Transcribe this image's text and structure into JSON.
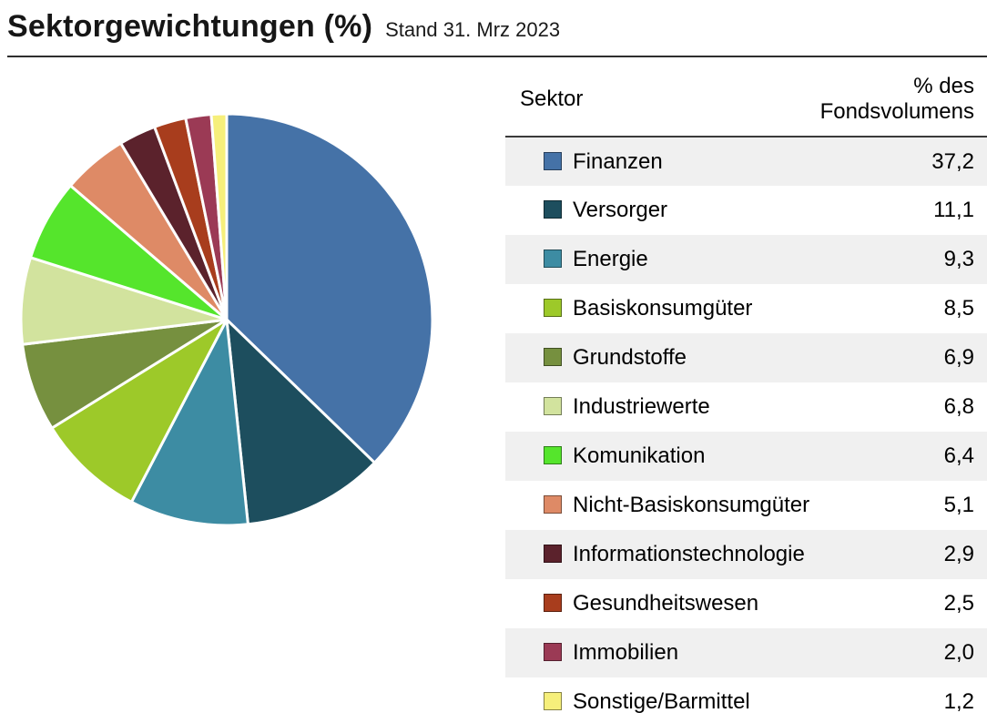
{
  "header": {
    "title": "Sektorgewichtungen (%)",
    "subtitle": "Stand 31. Mrz 2023"
  },
  "table": {
    "columns": [
      "Sektor",
      "% des Fondsvolumens"
    ]
  },
  "chart_data": {
    "type": "pie",
    "title": "Sektorgewichtungen (%)",
    "subtitle": "Stand 31. Mrz 2023",
    "start_angle_deg": 0,
    "direction": "clockwise",
    "legend_position": "right-table",
    "categories": [
      "Finanzen",
      "Versorger",
      "Energie",
      "Basiskonsumgüter",
      "Grundstoffe",
      "Industriewerte",
      "Komunikation",
      "Nicht-Basiskonsumgüter",
      "Informationstechnologie",
      "Gesundheitswesen",
      "Immobilien",
      "Sonstige/Barmittel"
    ],
    "values": [
      37.2,
      11.1,
      9.3,
      8.5,
      6.9,
      6.8,
      6.4,
      5.1,
      2.9,
      2.5,
      2.0,
      1.2
    ],
    "value_labels": [
      "37,2",
      "11,1",
      "9,3",
      "8,5",
      "6,9",
      "6,8",
      "6,4",
      "5,1",
      "2,9",
      "2,5",
      "2,0",
      "1,2"
    ],
    "colors": [
      "#4572a7",
      "#1d4e5e",
      "#3d8ca3",
      "#9dc929",
      "#76903f",
      "#d2e39e",
      "#55e52c",
      "#de8a66",
      "#5b222c",
      "#a83d1d",
      "#9b3a55",
      "#f6ef7b"
    ]
  }
}
